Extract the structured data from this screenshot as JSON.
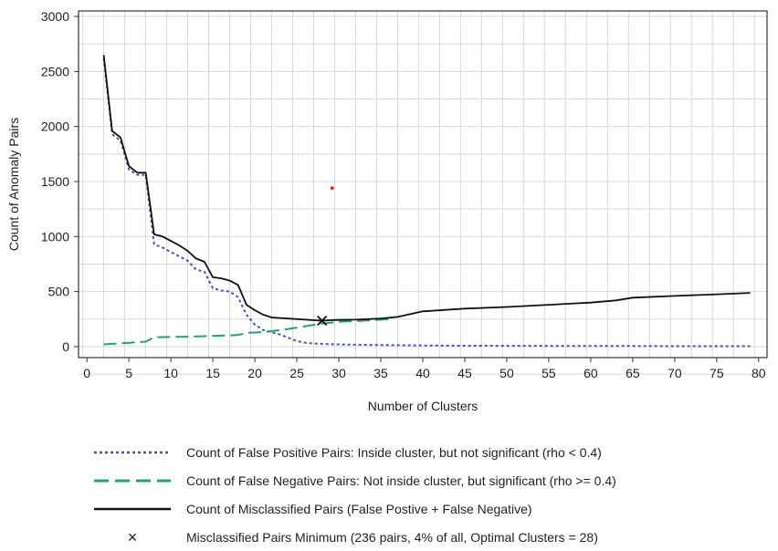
{
  "chart_data": {
    "type": "line",
    "xlabel": "Number of Clusters",
    "ylabel": "Count of Anomaly Pairs",
    "xlim": [
      -1,
      81
    ],
    "ylim": [
      -100,
      3050
    ],
    "xticks": [
      0,
      5,
      10,
      15,
      20,
      25,
      30,
      35,
      40,
      45,
      50,
      55,
      60,
      65,
      70,
      75,
      80
    ],
    "yticks": [
      0,
      500,
      1000,
      1500,
      2000,
      2500,
      3000
    ],
    "grid": true,
    "legend_position": "bottom",
    "series": [
      {
        "name": "Count of False Positive Pairs: Inside cluster, but not significant (rho < 0.4)",
        "color": "#3a55c4",
        "style": "dotted",
        "points": [
          [
            2,
            2620
          ],
          [
            3,
            1930
          ],
          [
            4,
            1870
          ],
          [
            5,
            1610
          ],
          [
            6,
            1560
          ],
          [
            7,
            1560
          ],
          [
            8,
            930
          ],
          [
            9,
            900
          ],
          [
            10,
            860
          ],
          [
            11,
            820
          ],
          [
            12,
            780
          ],
          [
            13,
            700
          ],
          [
            14,
            680
          ],
          [
            15,
            530
          ],
          [
            16,
            510
          ],
          [
            17,
            500
          ],
          [
            18,
            450
          ],
          [
            19,
            290
          ],
          [
            20,
            200
          ],
          [
            21,
            150
          ],
          [
            22,
            130
          ],
          [
            23,
            110
          ],
          [
            24,
            80
          ],
          [
            25,
            50
          ],
          [
            26,
            35
          ],
          [
            27,
            28
          ],
          [
            28,
            25
          ],
          [
            29,
            22
          ],
          [
            30,
            20
          ],
          [
            32,
            17
          ],
          [
            35,
            14
          ],
          [
            40,
            10
          ],
          [
            45,
            8
          ],
          [
            50,
            7
          ],
          [
            55,
            6
          ],
          [
            60,
            5
          ],
          [
            65,
            5
          ],
          [
            70,
            4
          ],
          [
            75,
            4
          ],
          [
            79,
            4
          ]
        ]
      },
      {
        "name": "Count of False Negative Pairs: Not inside cluster, but significant (rho >= 0.4)",
        "color": "#1fa66a",
        "style": "dashed",
        "points": [
          [
            2,
            20
          ],
          [
            3,
            25
          ],
          [
            4,
            30
          ],
          [
            5,
            35
          ],
          [
            6,
            40
          ],
          [
            7,
            45
          ],
          [
            8,
            85
          ],
          [
            10,
            88
          ],
          [
            12,
            90
          ],
          [
            14,
            95
          ],
          [
            16,
            100
          ],
          [
            18,
            105
          ],
          [
            19,
            125
          ],
          [
            20,
            128
          ],
          [
            22,
            140
          ],
          [
            24,
            160
          ],
          [
            26,
            185
          ],
          [
            28,
            210
          ],
          [
            30,
            225
          ],
          [
            32,
            232
          ],
          [
            34,
            240
          ],
          [
            35,
            245
          ],
          [
            36,
            250
          ]
        ]
      },
      {
        "name": "Count of Misclassified Pairs (False Postive + False Negative)",
        "color": "#111111",
        "style": "solid",
        "points": [
          [
            2,
            2650
          ],
          [
            3,
            1960
          ],
          [
            4,
            1900
          ],
          [
            5,
            1640
          ],
          [
            6,
            1580
          ],
          [
            7,
            1580
          ],
          [
            8,
            1020
          ],
          [
            9,
            1000
          ],
          [
            10,
            960
          ],
          [
            11,
            920
          ],
          [
            12,
            870
          ],
          [
            13,
            800
          ],
          [
            14,
            770
          ],
          [
            15,
            630
          ],
          [
            16,
            620
          ],
          [
            17,
            600
          ],
          [
            18,
            560
          ],
          [
            19,
            380
          ],
          [
            20,
            330
          ],
          [
            21,
            290
          ],
          [
            22,
            265
          ],
          [
            23,
            260
          ],
          [
            24,
            255
          ],
          [
            25,
            250
          ],
          [
            26,
            245
          ],
          [
            27,
            240
          ],
          [
            28,
            236
          ],
          [
            29,
            240
          ],
          [
            30,
            242
          ],
          [
            32,
            245
          ],
          [
            35,
            255
          ],
          [
            37,
            270
          ],
          [
            40,
            320
          ],
          [
            45,
            345
          ],
          [
            50,
            360
          ],
          [
            55,
            380
          ],
          [
            60,
            400
          ],
          [
            63,
            420
          ],
          [
            65,
            445
          ],
          [
            70,
            460
          ],
          [
            75,
            475
          ],
          [
            79,
            488
          ]
        ]
      }
    ],
    "minimum_marker": {
      "name": "Misclassified Pairs Minimum (236 pairs, 4% of all, Optimal Clusters = 28)",
      "x": 28,
      "y": 236,
      "symbol": "×"
    },
    "annotation_point": {
      "x": 29.2,
      "y": 1440,
      "color": "#ff2020"
    }
  }
}
